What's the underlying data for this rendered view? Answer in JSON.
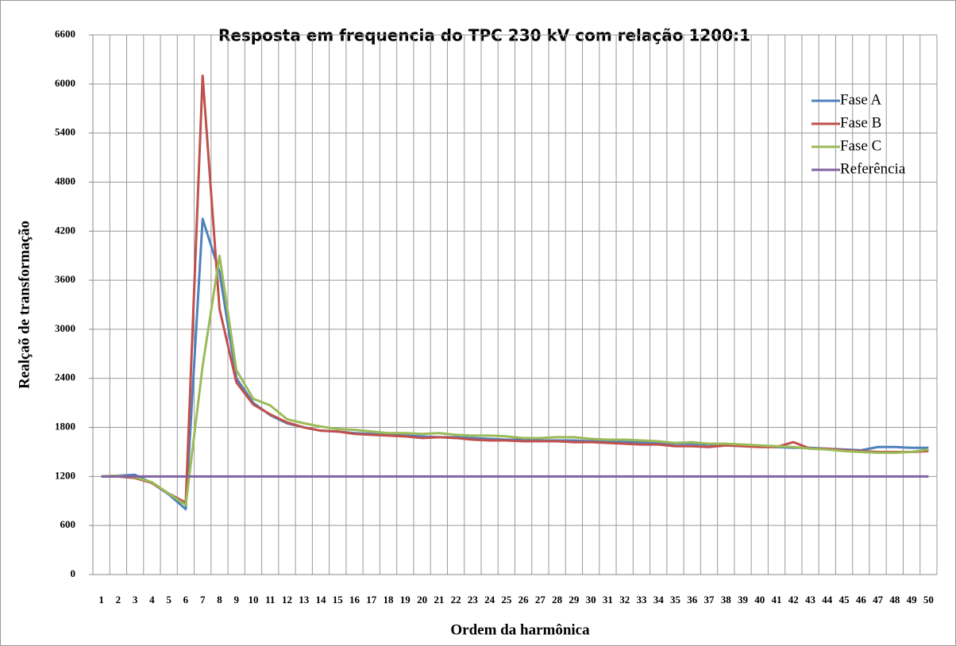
{
  "chart_data": {
    "type": "line",
    "title": "Resposta em frequencia do TPC 230 kV com relação 1200:1",
    "x_label": "Ordem da harmônica",
    "y_label": "Realçaõ de transformação",
    "categories": [
      "1",
      "2",
      "3",
      "4",
      "5",
      "6",
      "7",
      "8",
      "9",
      "10",
      "11",
      "12",
      "13",
      "14",
      "15",
      "16",
      "17",
      "18",
      "19",
      "20",
      "21",
      "22",
      "23",
      "24",
      "25",
      "26",
      "27",
      "28",
      "29",
      "30",
      "31",
      "32",
      "33",
      "34",
      "35",
      "36",
      "37",
      "38",
      "39",
      "40",
      "41",
      "42",
      "43",
      "44",
      "45",
      "46",
      "47",
      "48",
      "49",
      "50"
    ],
    "ylim": [
      0,
      6600
    ],
    "yticks": [
      0,
      600,
      1200,
      1800,
      2400,
      3000,
      3600,
      4200,
      4800,
      5400,
      6000,
      6600
    ],
    "grid": true,
    "legend": "upper right",
    "series": [
      {
        "name": "Fase A",
        "color": "#4f81bd",
        "values": [
          1200,
          1210,
          1220,
          1120,
          980,
          800,
          4350,
          3700,
          2400,
          2100,
          1950,
          1850,
          1800,
          1760,
          1750,
          1730,
          1720,
          1710,
          1700,
          1690,
          1680,
          1680,
          1670,
          1660,
          1650,
          1650,
          1640,
          1640,
          1640,
          1630,
          1630,
          1620,
          1620,
          1610,
          1600,
          1600,
          1590,
          1580,
          1580,
          1570,
          1560,
          1550,
          1550,
          1540,
          1530,
          1520,
          1560,
          1560,
          1550,
          1550
        ]
      },
      {
        "name": "Fase B",
        "color": "#c0504d",
        "values": [
          1200,
          1200,
          1180,
          1120,
          990,
          880,
          6100,
          3250,
          2350,
          2080,
          1960,
          1860,
          1800,
          1760,
          1750,
          1720,
          1710,
          1700,
          1690,
          1670,
          1680,
          1670,
          1650,
          1640,
          1640,
          1630,
          1630,
          1630,
          1620,
          1620,
          1610,
          1600,
          1590,
          1590,
          1570,
          1570,
          1560,
          1580,
          1570,
          1560,
          1560,
          1620,
          1540,
          1540,
          1520,
          1510,
          1500,
          1500,
          1500,
          1510
        ]
      },
      {
        "name": "Fase C",
        "color": "#9bbb59",
        "values": [
          1200,
          1210,
          1190,
          1130,
          990,
          850,
          2550,
          3900,
          2500,
          2150,
          2070,
          1900,
          1850,
          1810,
          1780,
          1770,
          1750,
          1730,
          1730,
          1720,
          1730,
          1710,
          1700,
          1700,
          1690,
          1670,
          1670,
          1680,
          1680,
          1660,
          1650,
          1650,
          1640,
          1630,
          1610,
          1620,
          1600,
          1600,
          1590,
          1580,
          1570,
          1560,
          1540,
          1530,
          1510,
          1500,
          1490,
          1490,
          1500,
          1530
        ]
      },
      {
        "name": "Referência",
        "color": "#8064a2",
        "values": [
          1200,
          1200,
          1200,
          1200,
          1200,
          1200,
          1200,
          1200,
          1200,
          1200,
          1200,
          1200,
          1200,
          1200,
          1200,
          1200,
          1200,
          1200,
          1200,
          1200,
          1200,
          1200,
          1200,
          1200,
          1200,
          1200,
          1200,
          1200,
          1200,
          1200,
          1200,
          1200,
          1200,
          1200,
          1200,
          1200,
          1200,
          1200,
          1200,
          1200,
          1200,
          1200,
          1200,
          1200,
          1200,
          1200,
          1200,
          1200,
          1200,
          1200
        ]
      }
    ]
  }
}
